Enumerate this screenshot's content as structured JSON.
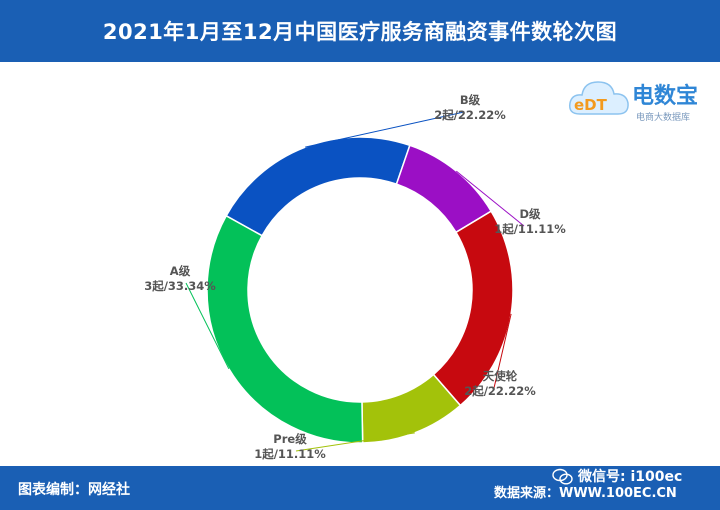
{
  "title": "2021年1月至12月中国医疗服务商融资事件数轮次图",
  "footer": {
    "left": "图表编制：网经社",
    "right": "数据来源：WWW.100EC.CN",
    "wechat": "微信号: i100ec"
  },
  "logo": {
    "name": "电数宝",
    "subtitle": "电商大数据库",
    "mark": "eDT"
  },
  "chart_data": {
    "type": "pie",
    "variant": "donut",
    "title": "2021年1月至12月中国医疗服务商融资事件数轮次图",
    "unit": "起",
    "slices": [
      {
        "name": "B级",
        "value": 2,
        "percent": "22.22%",
        "label": "2起/22.22%",
        "color": "#0a52c2"
      },
      {
        "name": "D级",
        "value": 1,
        "percent": "11.11%",
        "label": "1起/11.11%",
        "color": "#9b0fc5"
      },
      {
        "name": "天使轮",
        "value": 2,
        "percent": "22.22%",
        "label": "2起/22.22%",
        "color": "#c7090f"
      },
      {
        "name": "Pre级",
        "value": 1,
        "percent": "11.11%",
        "label": "1起/11.11%",
        "color": "#a3c20a"
      },
      {
        "name": "A级",
        "value": 3,
        "percent": "33.34%",
        "label": "3起/33.34%",
        "color": "#03c159"
      }
    ]
  }
}
